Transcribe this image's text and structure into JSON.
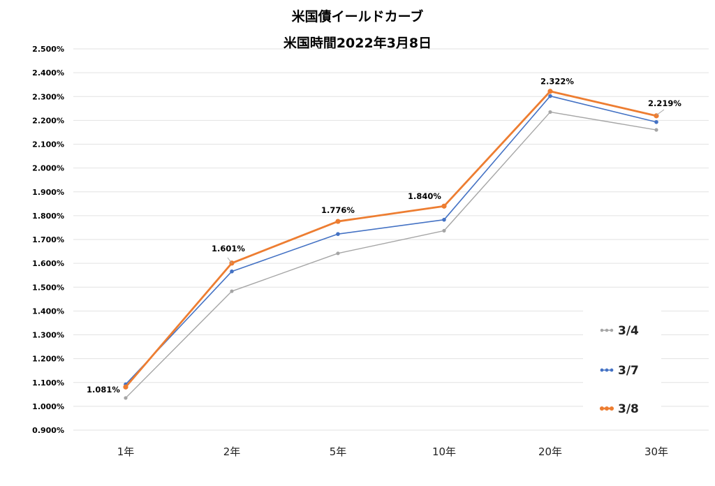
{
  "chart_data": {
    "type": "line",
    "title": "米国債イールドカーブ",
    "subtitle": "米国時間2022年3月8日",
    "xlabel": "",
    "ylabel": "",
    "categories": [
      "1年",
      "2年",
      "5年",
      "10年",
      "20年",
      "30年"
    ],
    "ylim": [
      0.9,
      2.5
    ],
    "yticks": [
      "2.500%",
      "2.400%",
      "2.300%",
      "2.200%",
      "2.100%",
      "2.000%",
      "1.900%",
      "1.800%",
      "1.700%",
      "1.600%",
      "1.500%",
      "1.400%",
      "1.300%",
      "1.200%",
      "1.100%",
      "1.000%",
      "0.900%"
    ],
    "grid": true,
    "legend_position": "right",
    "series": [
      {
        "name": "3/4",
        "color": "#a5a5a5",
        "values": [
          1.035,
          1.483,
          1.642,
          1.737,
          2.235,
          2.16
        ]
      },
      {
        "name": "3/7",
        "color": "#4472c4",
        "values": [
          1.092,
          1.566,
          1.723,
          1.783,
          2.302,
          2.193
        ]
      },
      {
        "name": "3/8",
        "color": "#ed7d31",
        "values": [
          1.081,
          1.601,
          1.776,
          1.84,
          2.322,
          2.219
        ],
        "data_labels": [
          "1.081%",
          "1.601%",
          "1.776%",
          "1.840%",
          "2.322%",
          "2.219%"
        ]
      }
    ]
  }
}
